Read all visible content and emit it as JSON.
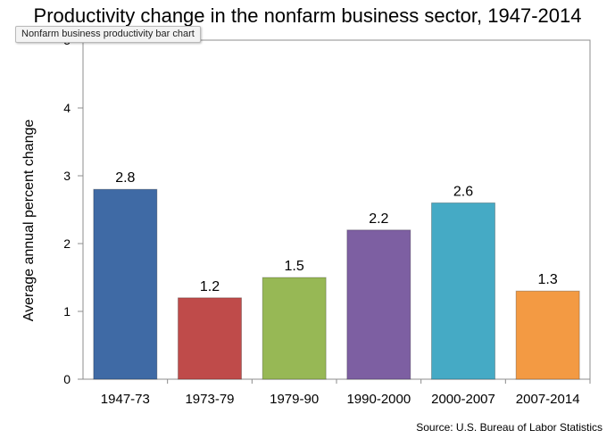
{
  "chart_data": {
    "type": "bar",
    "title": "Productivity change in the nonfarm business sector,  1947-2014",
    "xlabel": "",
    "ylabel": "Average annual percent change",
    "categories": [
      "1947-73",
      "1973-79",
      "1979-90",
      "1990-2000",
      "2000-2007",
      "2007-2014"
    ],
    "values": [
      2.8,
      1.2,
      1.5,
      2.2,
      2.6,
      1.3
    ],
    "value_labels": [
      "2.8",
      "1.2",
      "1.5",
      "2.2",
      "2.6",
      "1.3"
    ],
    "colors": [
      "#3f6aa5",
      "#bf4b4a",
      "#97b855",
      "#7d5fa2",
      "#45aac5",
      "#f39a43"
    ],
    "ylim": [
      0,
      5
    ],
    "yticks": [
      "0",
      "1",
      "2",
      "3",
      "4",
      "5"
    ],
    "grid": false,
    "legend": "none",
    "source": "Source: U.S. Bureau of Labor Statistics"
  },
  "tooltip": {
    "label": "Nonfarm business productivity bar chart"
  }
}
